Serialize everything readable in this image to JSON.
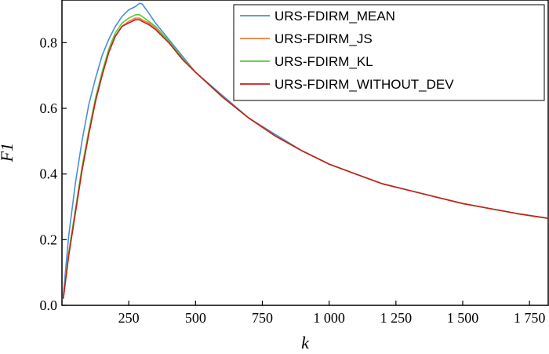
{
  "chart_data": {
    "type": "line",
    "title": "",
    "xlabel": "k",
    "ylabel": "F1",
    "xlim": [
      0,
      1820
    ],
    "ylim": [
      0,
      0.93
    ],
    "xticks": [
      {
        "value": 250,
        "label": "250"
      },
      {
        "value": 500,
        "label": "500"
      },
      {
        "value": 750,
        "label": "750"
      },
      {
        "value": 1000,
        "label": "1 000"
      },
      {
        "value": 1250,
        "label": "1 250"
      },
      {
        "value": 1500,
        "label": "1 500"
      },
      {
        "value": 1750,
        "label": "1 750"
      }
    ],
    "yticks": [
      {
        "value": 0.0,
        "label": "0.0"
      },
      {
        "value": 0.2,
        "label": "0.2"
      },
      {
        "value": 0.4,
        "label": "0.4"
      },
      {
        "value": 0.6,
        "label": "0.6"
      },
      {
        "value": 0.8,
        "label": "0.8"
      }
    ],
    "grid": false,
    "legend_position": "top-right",
    "series": [
      {
        "name": "URS-FDIRM_MEAN",
        "color": "#4a8ed8",
        "x": [
          5,
          25,
          50,
          75,
          100,
          125,
          150,
          175,
          200,
          225,
          250,
          275,
          290,
          300,
          325,
          350,
          400,
          450,
          500,
          600,
          700,
          800,
          900,
          1000,
          1100,
          1200,
          1300,
          1400,
          1500,
          1600,
          1700,
          1820
        ],
        "y": [
          0.03,
          0.21,
          0.37,
          0.5,
          0.61,
          0.69,
          0.76,
          0.81,
          0.85,
          0.88,
          0.9,
          0.91,
          0.92,
          0.918,
          0.89,
          0.86,
          0.81,
          0.76,
          0.71,
          0.64,
          0.57,
          0.52,
          0.47,
          0.43,
          0.4,
          0.37,
          0.35,
          0.33,
          0.31,
          0.295,
          0.28,
          0.265
        ]
      },
      {
        "name": "URS-FDIRM_JS",
        "color": "#f07d3a",
        "x": [
          5,
          25,
          50,
          75,
          100,
          125,
          150,
          175,
          200,
          225,
          250,
          275,
          290,
          300,
          325,
          350,
          400,
          450,
          500,
          600,
          700,
          800,
          900,
          1000,
          1100,
          1200,
          1300,
          1400,
          1500,
          1600,
          1700,
          1820
        ],
        "y": [
          0.02,
          0.15,
          0.28,
          0.41,
          0.52,
          0.62,
          0.7,
          0.77,
          0.82,
          0.85,
          0.865,
          0.875,
          0.875,
          0.87,
          0.86,
          0.845,
          0.8,
          0.75,
          0.71,
          0.635,
          0.57,
          0.515,
          0.47,
          0.43,
          0.4,
          0.37,
          0.35,
          0.33,
          0.31,
          0.295,
          0.28,
          0.265
        ]
      },
      {
        "name": "URS-FDIRM_KL",
        "color": "#55cc33",
        "x": [
          5,
          25,
          50,
          75,
          100,
          125,
          150,
          175,
          200,
          225,
          250,
          275,
          290,
          300,
          325,
          350,
          400,
          450,
          500,
          600,
          700,
          800,
          900,
          1000,
          1100,
          1200,
          1300,
          1400,
          1500,
          1600,
          1700,
          1820
        ],
        "y": [
          0.02,
          0.16,
          0.29,
          0.42,
          0.53,
          0.63,
          0.71,
          0.78,
          0.83,
          0.86,
          0.875,
          0.885,
          0.885,
          0.88,
          0.865,
          0.85,
          0.805,
          0.755,
          0.71,
          0.635,
          0.57,
          0.515,
          0.47,
          0.43,
          0.4,
          0.37,
          0.35,
          0.33,
          0.31,
          0.295,
          0.28,
          0.265
        ]
      },
      {
        "name": "URS-FDIRM_WITHOUT_DEV",
        "color": "#c81e1e",
        "x": [
          5,
          25,
          50,
          75,
          100,
          125,
          150,
          175,
          200,
          225,
          250,
          275,
          290,
          300,
          325,
          350,
          400,
          450,
          500,
          600,
          700,
          800,
          900,
          1000,
          1100,
          1200,
          1300,
          1400,
          1500,
          1600,
          1700,
          1820
        ],
        "y": [
          0.02,
          0.15,
          0.28,
          0.41,
          0.52,
          0.62,
          0.7,
          0.77,
          0.82,
          0.85,
          0.86,
          0.87,
          0.87,
          0.865,
          0.855,
          0.84,
          0.8,
          0.75,
          0.71,
          0.635,
          0.57,
          0.515,
          0.47,
          0.43,
          0.4,
          0.37,
          0.35,
          0.33,
          0.31,
          0.295,
          0.28,
          0.265
        ]
      }
    ]
  }
}
